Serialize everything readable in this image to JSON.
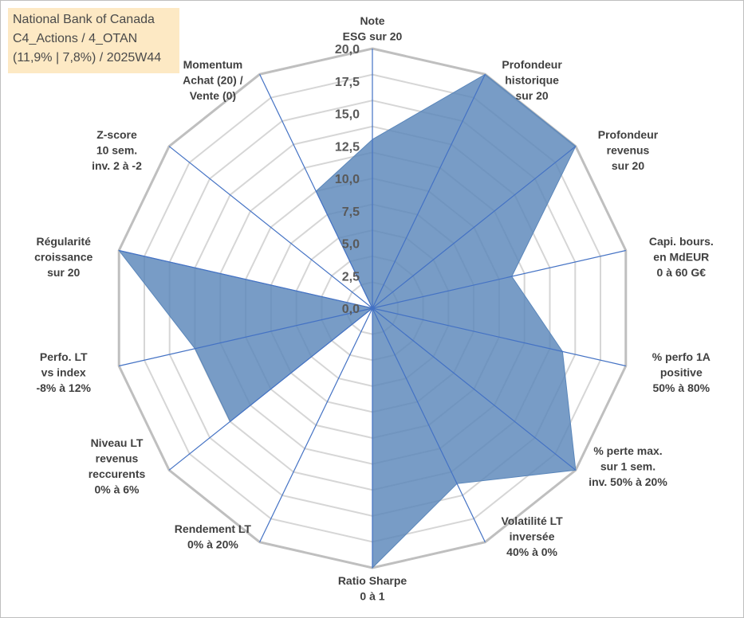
{
  "title_box": {
    "line1": "National Bank of Canada",
    "line2": "C4_Actions / 4_OTAN",
    "line3": "(11,9% | 7,8%) / 2025W44"
  },
  "colors": {
    "fill": "#5a86ba",
    "spoke": "#4472c4",
    "grid": "#d6d6d6",
    "outer_grid": "#bfbfbf",
    "title_bg": "#fde9c4"
  },
  "chart_data": {
    "type": "radar",
    "grid": true,
    "rlim": [
      0,
      20
    ],
    "r_ticks": [
      0,
      2.5,
      5,
      7.5,
      10,
      12.5,
      15,
      17.5,
      20
    ],
    "r_tick_labels": [
      "0,0",
      "2,5",
      "5,0",
      "7,5",
      "10,0",
      "12,5",
      "15,0",
      "17,5",
      "20,0"
    ],
    "categories": [
      [
        "Note",
        "ESG sur 20"
      ],
      [
        "Profondeur",
        "historique",
        "sur 20"
      ],
      [
        "Profondeur",
        "revenus",
        "sur 20"
      ],
      [
        "Capi. bours.",
        "en MdEUR",
        "0 à 60 G€"
      ],
      [
        "% perfo 1A",
        "positive",
        "50% à 80%"
      ],
      [
        "% perte max.",
        "sur 1 sem.",
        "inv. 50% à 20%"
      ],
      [
        "Volatilité LT",
        "inversée",
        "40% à 0%"
      ],
      [
        "Ratio Sharpe",
        "0 à 1"
      ],
      [
        "Rendement LT",
        "0% à 20%"
      ],
      [
        "Niveau LT",
        "revenus",
        "reccurents",
        "0% à 6%"
      ],
      [
        "Perfo. LT",
        "vs index",
        "-8% à 12%"
      ],
      [
        "Régularité",
        "croissance",
        "sur 20"
      ],
      [
        "Z-score",
        "10 sem.",
        "inv. 2 à -2"
      ],
      [
        "Momentum",
        "Achat (20) /",
        "Vente (0)"
      ]
    ],
    "values": [
      13.0,
      20.0,
      20.0,
      11.0,
      15.0,
      20.0,
      15.0,
      20.0,
      0.0,
      14.0,
      14.0,
      20.0,
      0.0,
      10.0
    ]
  }
}
